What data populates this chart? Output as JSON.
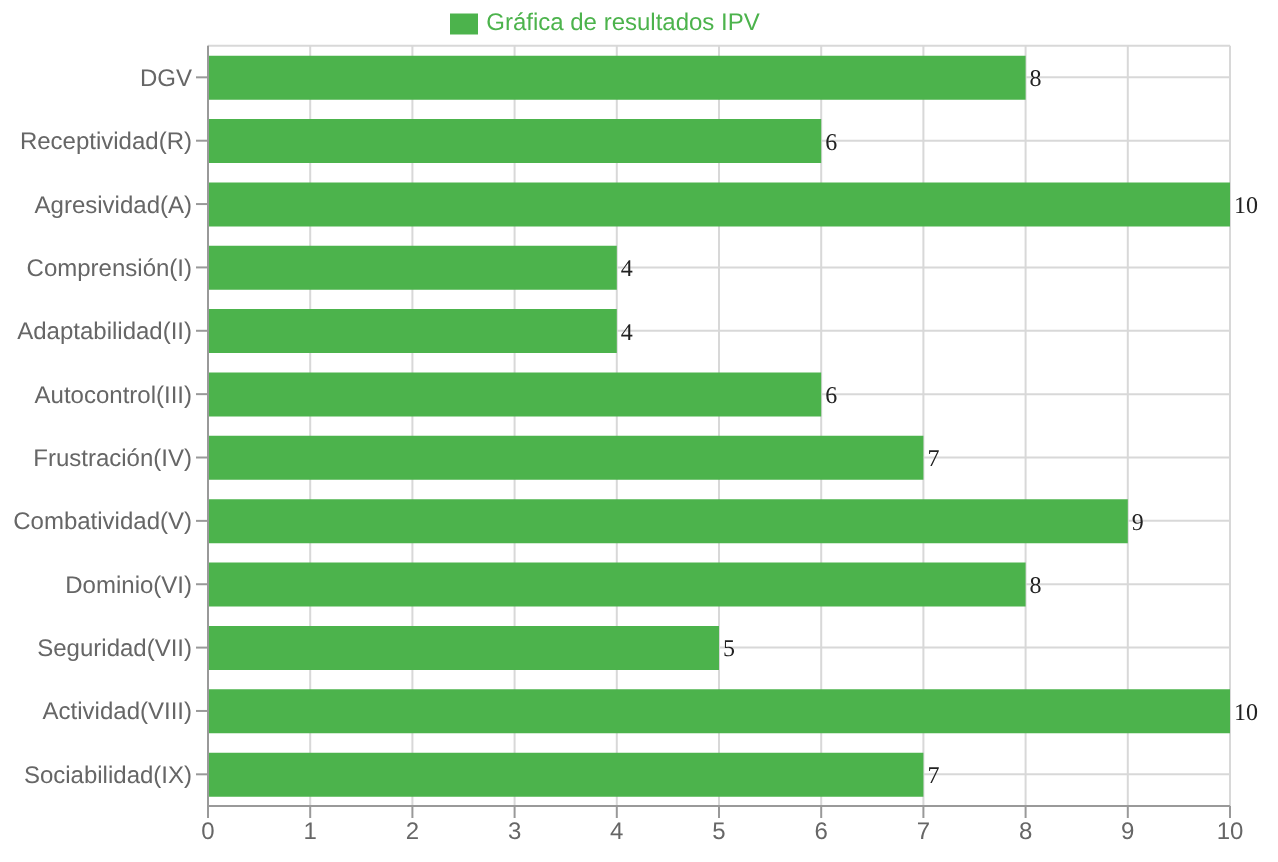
{
  "chart_data": {
    "type": "bar",
    "orientation": "horizontal",
    "categories": [
      "DGV",
      "Receptividad(R)",
      "Agresividad(A)",
      "Comprensión(I)",
      "Adaptabilidad(II)",
      "Autocontrol(III)",
      "Frustración(IV)",
      "Combatividad(V)",
      "Dominio(VI)",
      "Seguridad(VII)",
      "Actividad(VIII)",
      "Sociabilidad(IX)"
    ],
    "series": [
      {
        "name": "Gráfica de resultados IPV",
        "color": "#4cb34c",
        "values": [
          8,
          6,
          10,
          4,
          4,
          6,
          7,
          9,
          8,
          5,
          10,
          7
        ]
      }
    ],
    "xlim": [
      0,
      10
    ],
    "xticks": [
      0,
      1,
      2,
      3,
      4,
      5,
      6,
      7,
      8,
      9,
      10
    ],
    "grid": true,
    "legend": "top",
    "data_labels": true
  }
}
